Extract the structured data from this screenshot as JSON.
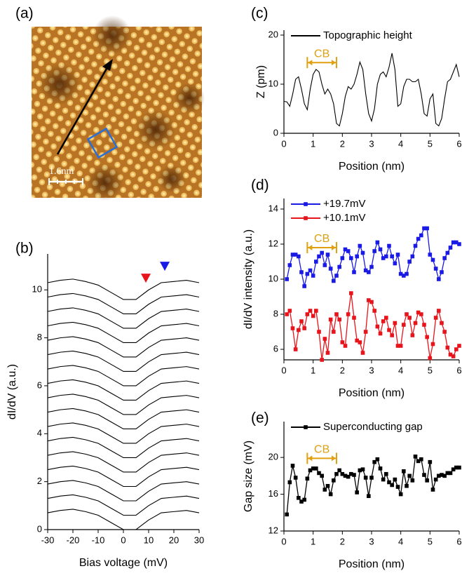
{
  "image_panel": {
    "label": "(a)",
    "scale_bar": "1.6nm"
  },
  "chart_data": [
    {
      "type": "line",
      "label": "(b)",
      "xlabel": "Bias voltage (mV)",
      "ylabel": "dI/dV (a.u.)",
      "xlim": [
        -30,
        30
      ],
      "xticks": [
        -30,
        -20,
        -10,
        0,
        10,
        20,
        30
      ],
      "ylim": [
        0,
        11.5
      ],
      "yticks": [
        0,
        2,
        4,
        6,
        8,
        10
      ],
      "x": [
        -30,
        -25,
        -20,
        -15,
        -10,
        -5,
        0,
        5,
        10,
        15,
        20,
        25,
        30
      ],
      "series": [
        {
          "color": "#000000",
          "values": [
            0.7,
            0.8,
            0.85,
            0.75,
            0.6,
            0.3,
            0,
            0,
            0.4,
            0.7,
            0.75,
            0.8,
            0.7
          ]
        },
        {
          "color": "#000000",
          "values": [
            1.3,
            1.4,
            1.45,
            1.35,
            1.2,
            0.9,
            0.6,
            0.6,
            1.0,
            1.3,
            1.35,
            1.4,
            1.3
          ]
        },
        {
          "color": "#000000",
          "values": [
            1.9,
            2.0,
            2.05,
            1.95,
            1.8,
            1.5,
            1.2,
            1.2,
            1.6,
            1.9,
            1.95,
            2.0,
            1.9
          ]
        },
        {
          "color": "#000000",
          "values": [
            2.5,
            2.6,
            2.65,
            2.55,
            2.4,
            2.1,
            1.8,
            1.8,
            2.2,
            2.5,
            2.55,
            2.6,
            2.5
          ]
        },
        {
          "color": "#000000",
          "values": [
            3.1,
            3.2,
            3.25,
            3.15,
            3.0,
            2.7,
            2.4,
            2.4,
            2.8,
            3.1,
            3.15,
            3.2,
            3.1
          ]
        },
        {
          "color": "#000000",
          "values": [
            3.7,
            3.8,
            3.85,
            3.75,
            3.6,
            3.3,
            3.0,
            3.0,
            3.4,
            3.7,
            3.75,
            3.8,
            3.7
          ]
        },
        {
          "color": "#000000",
          "values": [
            4.3,
            4.4,
            4.45,
            4.35,
            4.2,
            3.9,
            3.6,
            3.6,
            4.0,
            4.3,
            4.35,
            4.4,
            4.3
          ]
        },
        {
          "color": "#000000",
          "values": [
            4.9,
            5.0,
            5.05,
            4.95,
            4.8,
            4.5,
            4.2,
            4.2,
            4.6,
            4.9,
            4.95,
            5.0,
            4.9
          ]
        },
        {
          "color": "#000000",
          "values": [
            5.5,
            5.6,
            5.65,
            5.55,
            5.4,
            5.1,
            4.8,
            4.8,
            5.2,
            5.5,
            5.55,
            5.6,
            5.5
          ]
        },
        {
          "color": "#000000",
          "values": [
            6.1,
            6.2,
            6.25,
            6.15,
            6.0,
            5.7,
            5.4,
            5.4,
            5.8,
            6.1,
            6.15,
            6.2,
            6.1
          ]
        },
        {
          "color": "#000000",
          "values": [
            6.7,
            6.8,
            6.85,
            6.75,
            6.6,
            6.3,
            6.0,
            6.0,
            6.4,
            6.7,
            6.75,
            6.8,
            6.7
          ]
        },
        {
          "color": "#000000",
          "values": [
            7.3,
            7.4,
            7.45,
            7.35,
            7.2,
            6.9,
            6.6,
            6.6,
            7.0,
            7.3,
            7.35,
            7.4,
            7.3
          ]
        },
        {
          "color": "#000000",
          "values": [
            7.9,
            8.0,
            8.05,
            7.95,
            7.8,
            7.5,
            7.2,
            7.2,
            7.6,
            7.9,
            7.95,
            8.0,
            7.9
          ]
        },
        {
          "color": "#000000",
          "values": [
            8.5,
            8.6,
            8.65,
            8.55,
            8.4,
            8.1,
            7.8,
            7.8,
            8.2,
            8.5,
            8.55,
            8.6,
            8.5
          ]
        },
        {
          "color": "#000000",
          "values": [
            9.1,
            9.2,
            9.25,
            9.15,
            9.0,
            8.7,
            8.4,
            8.4,
            8.8,
            9.1,
            9.15,
            9.2,
            9.1
          ]
        },
        {
          "color": "#000000",
          "values": [
            9.7,
            9.8,
            9.85,
            9.75,
            9.6,
            9.3,
            9.0,
            9.0,
            9.4,
            9.7,
            9.75,
            9.8,
            9.7
          ]
        },
        {
          "color": "#000000",
          "values": [
            10.3,
            10.4,
            10.45,
            10.35,
            10.2,
            9.9,
            9.6,
            9.6,
            10.0,
            10.3,
            10.35,
            10.4,
            10.3
          ]
        }
      ],
      "markers": [
        {
          "x": 8.9,
          "y": 10.5,
          "color": "#e8141c"
        },
        {
          "x": 16.4,
          "y": 11.0,
          "color": "#1a1ae6"
        }
      ]
    },
    {
      "type": "line",
      "label": "(c)",
      "xlabel": "Position (nm)",
      "ylabel": "Z (pm)",
      "xlim": [
        0,
        6
      ],
      "xticks": [
        0,
        1,
        2,
        3,
        4,
        5,
        6
      ],
      "ylim": [
        0,
        21
      ],
      "yticks": [
        0,
        10,
        20
      ],
      "legend": "upper left",
      "x": [
        0,
        0.1,
        0.2,
        0.3,
        0.4,
        0.5,
        0.6,
        0.7,
        0.8,
        0.9,
        1,
        1.1,
        1.2,
        1.3,
        1.4,
        1.5,
        1.6,
        1.7,
        1.8,
        1.9,
        2,
        2.1,
        2.2,
        2.3,
        2.4,
        2.5,
        2.6,
        2.7,
        2.8,
        2.9,
        3,
        3.1,
        3.2,
        3.3,
        3.4,
        3.5,
        3.6,
        3.7,
        3.8,
        3.9,
        4,
        4.1,
        4.2,
        4.3,
        4.4,
        4.5,
        4.6,
        4.7,
        4.8,
        4.9,
        5,
        5.1,
        5.2,
        5.3,
        5.4,
        5.5,
        5.6,
        5.7,
        5.8,
        5.9,
        6
      ],
      "series": [
        {
          "name": "Topographic height",
          "color": "#000000",
          "values": [
            6.5,
            6.4,
            5.5,
            8,
            11,
            11.5,
            9,
            6,
            4.8,
            9,
            12,
            13,
            12.5,
            10,
            8,
            9,
            8,
            6,
            2,
            1.5,
            4,
            7.5,
            9.5,
            9,
            10,
            12,
            14.5,
            13,
            8,
            4,
            2.5,
            5,
            10,
            12,
            12.5,
            11.5,
            13.5,
            16.3,
            13,
            5.5,
            6,
            9.5,
            11,
            11,
            10.5,
            10.5,
            11,
            8,
            4,
            3.5,
            7,
            8,
            2,
            1.5,
            3,
            7,
            10.5,
            11,
            12.5,
            14,
            11.5
          ]
        }
      ],
      "annotation": {
        "text": "CB",
        "x": [
          0.8,
          1.8
        ],
        "y": 14.4,
        "color": "#e0a010"
      }
    },
    {
      "type": "line",
      "label": "(d)",
      "xlabel": "Position (nm)",
      "ylabel": "dI/dV intensity (a.u.)",
      "marker": "square",
      "xlim": [
        0,
        6
      ],
      "xticks": [
        0,
        1,
        2,
        3,
        4,
        5,
        6
      ],
      "ylim": [
        5.4,
        14.6
      ],
      "yticks": [
        6,
        8,
        10,
        12,
        14
      ],
      "legend": "upper left",
      "x": [
        0.1,
        0.2,
        0.3,
        0.4,
        0.5,
        0.6,
        0.7,
        0.8,
        0.9,
        1,
        1.1,
        1.2,
        1.3,
        1.4,
        1.5,
        1.6,
        1.7,
        1.8,
        1.9,
        2,
        2.1,
        2.2,
        2.3,
        2.4,
        2.5,
        2.6,
        2.7,
        2.8,
        2.9,
        3,
        3.1,
        3.2,
        3.3,
        3.4,
        3.5,
        3.6,
        3.7,
        3.8,
        3.9,
        4,
        4.1,
        4.2,
        4.3,
        4.4,
        4.5,
        4.6,
        4.7,
        4.8,
        4.9,
        5,
        5.1,
        5.2,
        5.3,
        5.4,
        5.5,
        5.6,
        5.7,
        5.8,
        5.9,
        6
      ],
      "series": [
        {
          "name": "+19.7mV",
          "color": "#1a1ae6",
          "values": [
            10.0,
            10.8,
            11.4,
            11.4,
            11.3,
            10.4,
            9.6,
            10.3,
            10.5,
            10.2,
            11.0,
            11.3,
            11.5,
            10.8,
            11.4,
            10.6,
            9.9,
            10.2,
            10.7,
            11.2,
            11.7,
            11.6,
            11.2,
            10.4,
            11.3,
            11.9,
            11.5,
            10.5,
            10.4,
            10.7,
            11.6,
            12.1,
            11.7,
            11.2,
            11.3,
            11.9,
            11.3,
            10.9,
            11.4,
            10.3,
            10.2,
            10.3,
            11.0,
            11.3,
            11.9,
            12.3,
            12.5,
            12.9,
            12.9,
            11.4,
            11.1,
            10.6,
            10.0,
            10.4,
            11.2,
            11.5,
            11.8,
            12.1,
            12.1,
            12.0
          ]
        },
        {
          "name": "+10.1mV",
          "color": "#e8141c",
          "values": [
            8.0,
            8.2,
            7.2,
            6.0,
            7.1,
            7.6,
            7.2,
            8.0,
            8.2,
            7.9,
            8.2,
            7.0,
            5.4,
            6.6,
            5.8,
            7.7,
            7.0,
            8.0,
            7.7,
            6.4,
            6.2,
            8.0,
            9.2,
            7.8,
            6.5,
            6.4,
            5.8,
            7.0,
            8.8,
            8.7,
            8.2,
            7.3,
            6.9,
            7.6,
            7.8,
            7.1,
            6.8,
            7.5,
            6.2,
            6.2,
            7.4,
            8.0,
            7.8,
            6.8,
            7.5,
            8.1,
            8.0,
            7.4,
            6.7,
            5.5,
            6.3,
            7.8,
            8.2,
            7.5,
            7.0,
            6.1,
            5.7,
            5.6,
            6.0,
            6.2
          ]
        }
      ],
      "annotation": {
        "text": "CB",
        "x": [
          0.8,
          1.8
        ],
        "y": 11.8,
        "color": "#e0a010"
      }
    },
    {
      "type": "line",
      "label": "(e)",
      "xlabel": "Position (nm)",
      "ylabel": "Gap size (mV)",
      "marker": "square",
      "xlim": [
        0,
        6
      ],
      "xticks": [
        0,
        1,
        2,
        3,
        4,
        5,
        6
      ],
      "ylim": [
        12,
        23.9
      ],
      "yticks": [
        12,
        16,
        20
      ],
      "legend": "upper left",
      "x": [
        0.1,
        0.2,
        0.3,
        0.4,
        0.5,
        0.6,
        0.7,
        0.8,
        0.9,
        1,
        1.1,
        1.2,
        1.3,
        1.4,
        1.5,
        1.6,
        1.7,
        1.8,
        1.9,
        2,
        2.1,
        2.2,
        2.3,
        2.4,
        2.5,
        2.6,
        2.7,
        2.8,
        2.9,
        3,
        3.1,
        3.2,
        3.3,
        3.4,
        3.5,
        3.6,
        3.7,
        3.8,
        3.9,
        4,
        4.1,
        4.2,
        4.3,
        4.4,
        4.5,
        4.6,
        4.7,
        4.8,
        4.9,
        5,
        5.1,
        5.2,
        5.3,
        5.4,
        5.5,
        5.6,
        5.7,
        5.8,
        5.9,
        6
      ],
      "series": [
        {
          "name": "Superconducting gap",
          "color": "#000000",
          "values": [
            13.8,
            17.3,
            19.1,
            17.8,
            15.6,
            15.2,
            15.4,
            17.7,
            18.6,
            18.8,
            18.8,
            18.3,
            18.0,
            16.5,
            16.9,
            16.0,
            17.5,
            18.2,
            18.6,
            18.2,
            18.0,
            17.9,
            18.2,
            18.1,
            16.2,
            18.6,
            18.7,
            17.8,
            15.8,
            17.8,
            19.5,
            19.8,
            18.8,
            17.6,
            18.2,
            17.3,
            17.0,
            17.6,
            16.8,
            16.0,
            18.5,
            16.9,
            18.0,
            17.5,
            20.1,
            19.6,
            19.8,
            18.1,
            17.5,
            19.5,
            16.5,
            17.6,
            18.0,
            18.1,
            18.0,
            18.3,
            18.3,
            18.7,
            18.9,
            18.9
          ]
        }
      ],
      "annotation": {
        "text": "CB",
        "x": [
          0.8,
          1.8
        ],
        "y": 19.9,
        "color": "#e0a010"
      }
    }
  ]
}
